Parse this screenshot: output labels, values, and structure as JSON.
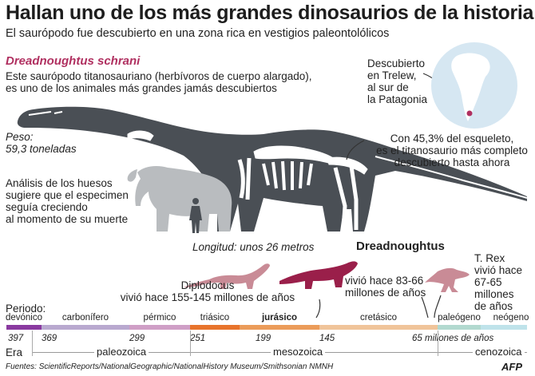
{
  "header": {
    "title": "Hallan uno de los más grandes dinosaurios de la historia",
    "subtitle": "El saurópodo fue descubierto en una zona rica en vestigios paleontolólicos"
  },
  "species": {
    "name": "Dreadnoughtus schrani",
    "description": [
      "Este saurópodo titanosauriano (herbívoros de cuerpo alargado),",
      "es uno de los animales más grandes jamás descubiertos"
    ]
  },
  "weight": {
    "label": "Peso:",
    "value": "59,3 toneladas"
  },
  "growth_note": [
    "Análisis de los huesos",
    "sugiere que el especimen",
    "seguía creciendo",
    "al momento de su muerte"
  ],
  "length_note": "Longitud: unos 26 metros",
  "skeleton_note": [
    "Con 45,3% del esqueleto,",
    "es el titanosaurio más completo",
    "descubierto hasta ahora"
  ],
  "location_note": [
    "Descubierto",
    "en Trelew,",
    "al sur de",
    "la Patagonia"
  ],
  "comparison": {
    "diplodocus": {
      "name": "Diplodocus",
      "text": "vivió hace 155-145 millones de años",
      "color": "#c98b96"
    },
    "dreadnoughtus": {
      "name": "Dreadnoughtus",
      "text": [
        "vivió hace 83-66",
        "millones de años"
      ],
      "color": "#9a1f4a"
    },
    "trex": {
      "name": "T. Rex",
      "text": [
        "vivió hace",
        "67-65",
        "millones",
        "de años"
      ],
      "color": "#c98b96"
    }
  },
  "timeline": {
    "periodo_label": "Periodo:",
    "era_label": "Era",
    "periods": [
      {
        "name": "devónico",
        "start": 397,
        "end": 369,
        "color": "#8a3aa0"
      },
      {
        "name": "carbonífero",
        "start": 369,
        "end": 299,
        "color": "#b9a9cf"
      },
      {
        "name": "pérmico",
        "start": 299,
        "end": 251,
        "color": "#cf9fc6"
      },
      {
        "name": "triásico",
        "start": 251,
        "end": 199,
        "color": "#e8742c"
      },
      {
        "name": "jurásico",
        "start": 199,
        "end": 145,
        "color": "#eb9c5a",
        "bold": true
      },
      {
        "name": "cretásico",
        "start": 145,
        "end": 65,
        "color": "#f0c49a"
      },
      {
        "name": "paleógeno",
        "start": 65,
        "end": 23,
        "color": "#b2d9cf"
      },
      {
        "name": "neógeno",
        "start": 23,
        "end": 0,
        "color": "#bfe3ea"
      }
    ],
    "ticks": [
      "397",
      "369",
      "299",
      "251",
      "199",
      "145",
      "65 millones de años"
    ],
    "eras": [
      "paleozoica",
      "mesozoica",
      "cenozoica"
    ]
  },
  "footer": {
    "sources": "Fuentes: ScientificReports/NationalGeographic/NationalHistory Museum/Smithsonian NMNH",
    "logo": "AFP"
  },
  "colors": {
    "skeleton": "#4a4f55",
    "elephant": "#b9bcbf",
    "accent": "#b03060",
    "era_line": "#999999"
  }
}
